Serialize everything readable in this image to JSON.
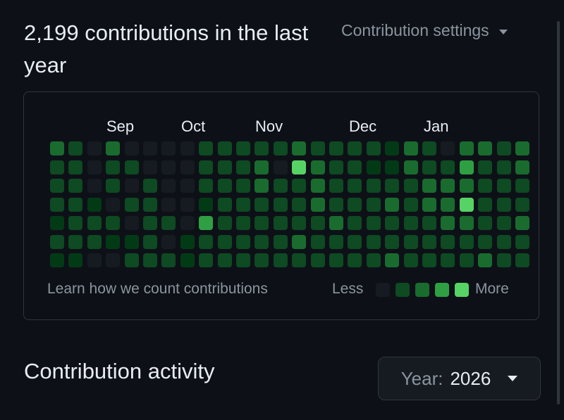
{
  "header": {
    "contributions_text": "2,199 contributions in the last year",
    "settings_label": "Contribution settings"
  },
  "graph": {
    "months": [
      "Sep",
      "Oct",
      "Nov",
      "Dec",
      "Jan"
    ],
    "levels_by_week": [
      [
        3,
        2,
        2,
        2,
        1,
        2,
        1
      ],
      [
        2,
        2,
        2,
        2,
        2,
        2,
        1
      ],
      [
        0,
        0,
        0,
        1,
        2,
        2,
        0
      ],
      [
        3,
        2,
        2,
        0,
        2,
        1,
        0
      ],
      [
        0,
        2,
        0,
        2,
        0,
        1,
        2
      ],
      [
        0,
        0,
        2,
        2,
        2,
        2,
        2
      ],
      [
        0,
        0,
        0,
        0,
        2,
        0,
        2
      ],
      [
        0,
        0,
        0,
        0,
        0,
        1,
        1
      ],
      [
        2,
        2,
        2,
        1,
        4,
        2,
        2
      ],
      [
        2,
        2,
        2,
        2,
        2,
        2,
        2
      ],
      [
        2,
        2,
        2,
        2,
        2,
        2,
        2
      ],
      [
        2,
        3,
        3,
        2,
        2,
        2,
        2
      ],
      [
        2,
        0,
        2,
        2,
        2,
        2,
        2
      ],
      [
        3,
        5,
        2,
        2,
        2,
        3,
        2
      ],
      [
        2,
        3,
        3,
        3,
        2,
        2,
        2
      ],
      [
        2,
        2,
        2,
        2,
        3,
        2,
        2
      ],
      [
        2,
        2,
        2,
        2,
        2,
        2,
        2
      ],
      [
        2,
        1,
        2,
        2,
        2,
        2,
        2
      ],
      [
        1,
        1,
        2,
        3,
        2,
        2,
        3
      ],
      [
        3,
        3,
        2,
        2,
        2,
        2,
        2
      ],
      [
        2,
        2,
        3,
        3,
        2,
        2,
        2
      ],
      [
        0,
        2,
        3,
        3,
        3,
        2,
        2
      ],
      [
        3,
        4,
        3,
        5,
        3,
        2,
        2
      ],
      [
        3,
        2,
        2,
        2,
        2,
        2,
        3
      ],
      [
        2,
        2,
        2,
        2,
        2,
        2,
        2
      ],
      [
        3,
        3,
        2,
        2,
        3,
        2,
        2
      ]
    ]
  },
  "legend": {
    "learn_link": "Learn how we count contributions",
    "less": "Less",
    "more": "More"
  },
  "activity": {
    "title": "Contribution activity",
    "year_label": "Year:",
    "year_value": "2026"
  },
  "colors": {
    "level0": "#161b22",
    "level1": "#033a16",
    "level2": "#0e4a22",
    "level3": "#196c2e",
    "level4": "#2ea043",
    "level5": "#56d364"
  }
}
